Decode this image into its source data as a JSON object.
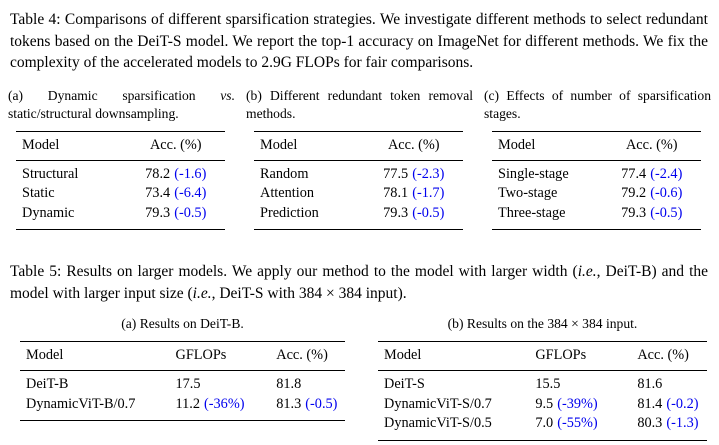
{
  "colors": {
    "background": "#FFFFFF",
    "text": "#000000",
    "delta_blue": "#0000EE"
  },
  "table4": {
    "caption": "Table 4: Comparisons of different sparsification strategies. We investigate different methods to select redundant tokens based on the DeiT-S model. We report the top-1 accuracy on ImageNet for different methods. We fix the complexity of the accelerated models to 2.9G FLOPs for fair comparisons.",
    "a": {
      "caption_part1": "(a) Dynamic sparsification ",
      "caption_vs": "vs.",
      "caption_part2": " static/structural downsampling.",
      "headers": [
        "Model",
        "Acc. (%)"
      ],
      "rows": [
        {
          "model": "Structural",
          "acc": "78.2",
          "delta": "(-1.6)"
        },
        {
          "model": "Static",
          "acc": "73.4",
          "delta": "(-6.4)"
        },
        {
          "model": "Dynamic",
          "acc": "79.3",
          "delta": "(-0.5)"
        }
      ]
    },
    "b": {
      "caption": "(b) Different redundant token re­moval methods.",
      "headers": [
        "Model",
        "Acc. (%)"
      ],
      "rows": [
        {
          "model": "Random",
          "acc": "77.5",
          "delta": "(-2.3)"
        },
        {
          "model": "Attention",
          "acc": "78.1",
          "delta": "(-1.7)"
        },
        {
          "model": "Prediction",
          "acc": "79.3",
          "delta": "(-0.5)"
        }
      ]
    },
    "c": {
      "caption": "(c) Effects of number of sparsifica­tion stages.",
      "headers": [
        "Model",
        "Acc. (%)"
      ],
      "rows": [
        {
          "model": "Single-stage",
          "acc": "77.4",
          "delta": "(-2.4)"
        },
        {
          "model": "Two-stage",
          "acc": "79.2",
          "delta": "(-0.6)"
        },
        {
          "model": "Three-stage",
          "acc": "79.3",
          "delta": "(-0.5)"
        }
      ]
    }
  },
  "table5": {
    "caption_part1": "Table 5: Results on larger models. We apply our method to the model with larger width (",
    "caption_ie1": "i.e.",
    "caption_part2": ", DeiT-B) and the model with larger input size (",
    "caption_ie2": "i.e.",
    "caption_part3": ", DeiT-S with 384 × 384 input).",
    "a": {
      "caption": "(a) Results on DeiT-B.",
      "headers": [
        "Model",
        "GFLOPs",
        "Acc. (%)"
      ],
      "rows": [
        {
          "model": "DeiT-B",
          "gflops": "17.5",
          "gflops_delta": "",
          "acc": "81.8",
          "acc_delta": ""
        },
        {
          "model": "DynamicViT-B/0.7",
          "gflops": "11.2",
          "gflops_delta": "(-36%)",
          "acc": "81.3",
          "acc_delta": "(-0.5)"
        }
      ]
    },
    "b": {
      "caption": "(b) Results on the 384 × 384 input.",
      "headers": [
        "Model",
        "GFLOPs",
        "Acc. (%)"
      ],
      "rows": [
        {
          "model": "DeiT-S",
          "gflops": "15.5",
          "gflops_delta": "",
          "acc": "81.6",
          "acc_delta": ""
        },
        {
          "model": "DynamicViT-S/0.7",
          "gflops": "9.5",
          "gflops_delta": "(-39%)",
          "acc": "81.4",
          "acc_delta": "(-0.2)"
        },
        {
          "model": "DynamicViT-S/0.5",
          "gflops": "7.0",
          "gflops_delta": "(-55%)",
          "acc": "80.3",
          "acc_delta": "(-1.3)"
        }
      ]
    }
  }
}
